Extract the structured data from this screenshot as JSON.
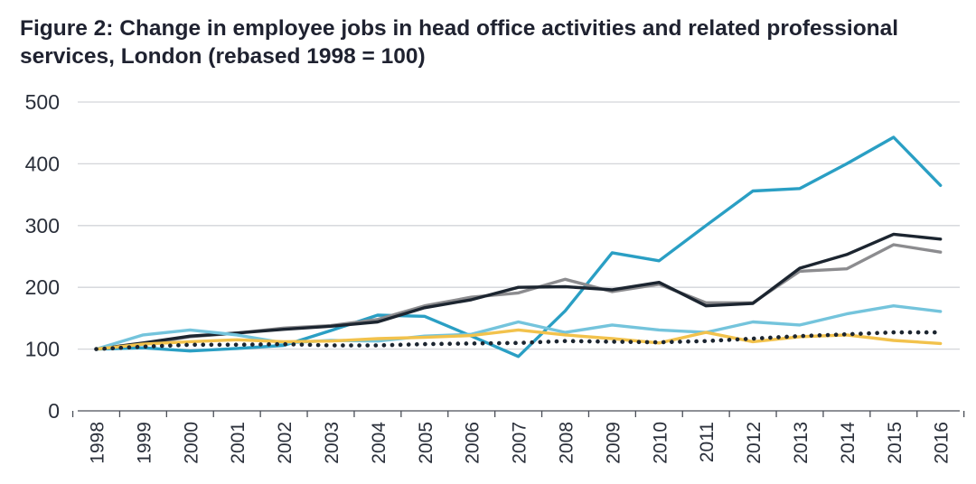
{
  "title": {
    "line1": "Figure 2: Change in employee jobs in head office activities and related professional",
    "line2": "services, London (rebased 1998 = 100)"
  },
  "chart_data": {
    "type": "line",
    "title": "Figure 2: Change in employee jobs in head office activities and related professional services, London (rebased 1998 = 100)",
    "xlabel": "",
    "ylabel": "",
    "ylim": [
      0,
      500
    ],
    "y_ticks": [
      0,
      100,
      200,
      300,
      400,
      500
    ],
    "grid": true,
    "legend": "none",
    "x": [
      "1998",
      "1999",
      "2000",
      "2001",
      "2002",
      "2003",
      "2004",
      "2005",
      "2006",
      "2007",
      "2008",
      "2009",
      "2010",
      "2011",
      "2012",
      "2013",
      "2014",
      "2015",
      "2016"
    ],
    "series": [
      {
        "color": "#2a9fc4",
        "style": "solid",
        "values": [
          100,
          102,
          97,
          101,
          106,
          130,
          155,
          153,
          121,
          88,
          162,
          256,
          243,
          300,
          356,
          360,
          400,
          443,
          365
        ]
      },
      {
        "color": "#8c8c8f",
        "style": "solid",
        "values": [
          100,
          108,
          120,
          126,
          134,
          138,
          148,
          170,
          184,
          191,
          213,
          193,
          205,
          175,
          175,
          226,
          230,
          269,
          257
        ]
      },
      {
        "color": "#1c2530",
        "style": "solid",
        "values": [
          100,
          110,
          121,
          126,
          132,
          137,
          144,
          167,
          180,
          200,
          201,
          196,
          208,
          170,
          174,
          231,
          253,
          286,
          278
        ]
      },
      {
        "color": "#74c4dc",
        "style": "solid",
        "values": [
          100,
          123,
          131,
          123,
          110,
          114,
          113,
          121,
          124,
          144,
          127,
          139,
          131,
          127,
          144,
          139,
          157,
          170,
          161
        ]
      },
      {
        "color": "#f2c24c",
        "style": "solid",
        "values": [
          100,
          108,
          112,
          115,
          112,
          113,
          117,
          119,
          122,
          131,
          123,
          117,
          110,
          127,
          112,
          120,
          123,
          114,
          109
        ]
      },
      {
        "color": "#1c2530",
        "style": "dotted",
        "values": [
          100,
          104,
          107,
          107,
          108,
          106,
          106,
          108,
          109,
          110,
          113,
          112,
          111,
          113,
          117,
          121,
          124,
          127,
          127
        ]
      }
    ]
  }
}
